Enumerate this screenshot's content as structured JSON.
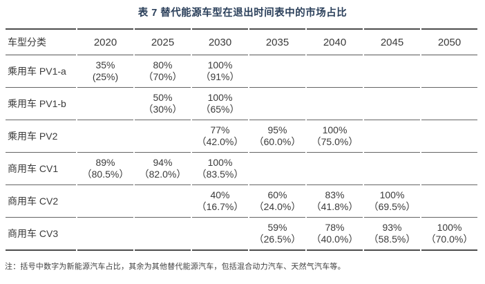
{
  "caption": "表 7 替代能源车型在退出时间表中的市场占比",
  "table": {
    "columns": [
      "车型分类",
      "2020",
      "2025",
      "2030",
      "2035",
      "2040",
      "2045",
      "2050"
    ],
    "rows": [
      {
        "label": "乘用车 PV1-a",
        "values": [
          {
            "total": "35%",
            "nev": "(25%)"
          },
          {
            "total": "80%",
            "nev": "（70%）"
          },
          {
            "total": "100%",
            "nev": "（91%）"
          },
          null,
          null,
          null,
          null
        ]
      },
      {
        "label": "乘用车 PV1-b",
        "values": [
          null,
          {
            "total": "50%",
            "nev": "（30%）"
          },
          {
            "total": "100%",
            "nev": "（65%）"
          },
          null,
          null,
          null,
          null
        ]
      },
      {
        "label": "乘用车 PV2",
        "values": [
          null,
          null,
          {
            "total": "77%",
            "nev": "（42.0%）"
          },
          {
            "total": "95%",
            "nev": "（60.0%）"
          },
          {
            "total": "100%",
            "nev": "（75.0%）"
          },
          null,
          null
        ]
      },
      {
        "label": "商用车 CV1",
        "values": [
          {
            "total": "89%",
            "nev": "（80.5%）"
          },
          {
            "total": "94%",
            "nev": "（82.0%）"
          },
          {
            "total": "100%",
            "nev": "（83.5%）"
          },
          null,
          null,
          null,
          null
        ]
      },
      {
        "label": "商用车 CV2",
        "values": [
          null,
          null,
          {
            "total": "40%",
            "nev": "（16.7%）"
          },
          {
            "total": "60%",
            "nev": "（24.0%）"
          },
          {
            "total": "83%",
            "nev": "（41.8%）"
          },
          {
            "total": "100%",
            "nev": "（69.5%）"
          },
          null
        ]
      },
      {
        "label": "商用车 CV3",
        "values": [
          null,
          null,
          null,
          {
            "total": "59%",
            "nev": "（26.5%）"
          },
          {
            "total": "78%",
            "nev": "（40.0%）"
          },
          {
            "total": "93%",
            "nev": "（58.5%）"
          },
          {
            "total": "100%",
            "nev": "（70.0%）"
          }
        ]
      }
    ]
  },
  "footnote": "注：括号中数字为新能源汽车占比，其余为其他替代能源汽车，包括混合动力汽车、天然气汽车等。",
  "colors": {
    "caption_text": "#2a3f5a",
    "body_text": "#3a3a3a",
    "rule_heavy": "#4c4c4c",
    "rule_light": "#636363",
    "background": "#ffffff"
  }
}
